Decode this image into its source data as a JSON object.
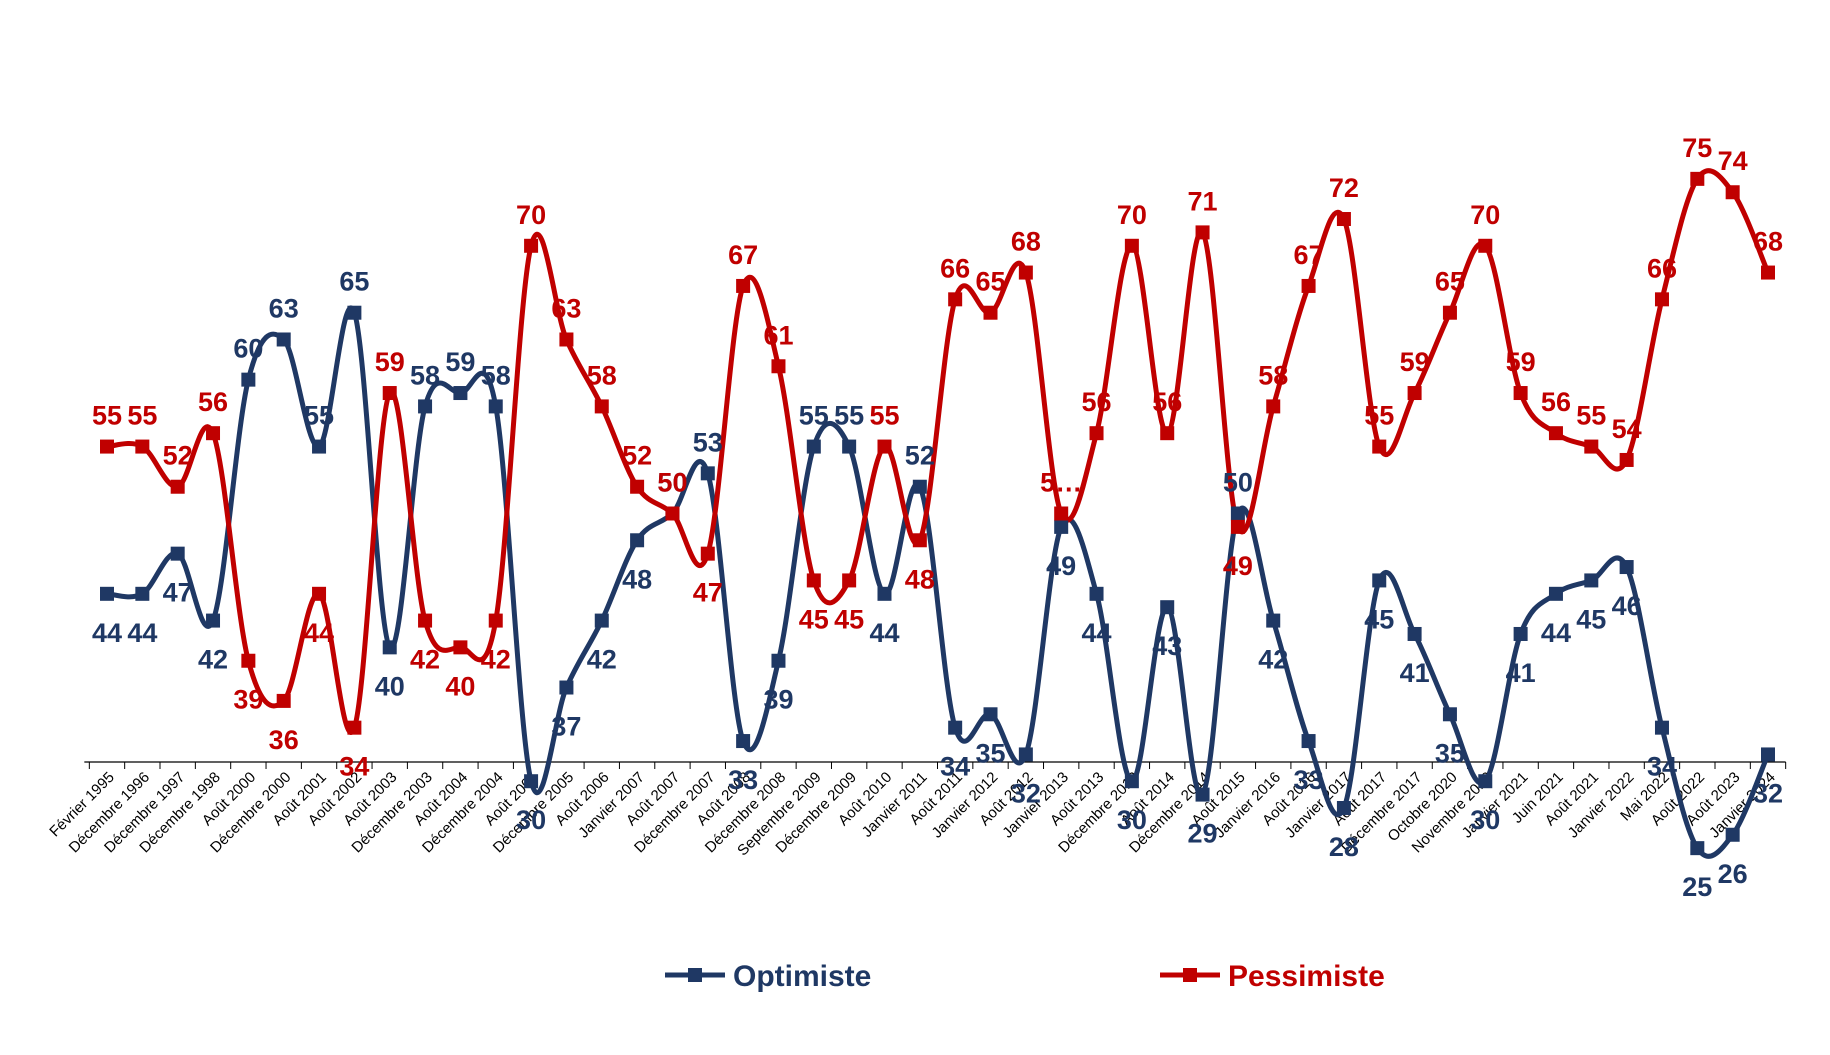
{
  "chart_data": {
    "type": "line",
    "title": "",
    "xlabel": "",
    "ylabel": "",
    "ylim": [
      15,
      85
    ],
    "grid": false,
    "legend_position": "bottom",
    "categories": [
      "Février 1995",
      "Décembre 1996",
      "Décembre 1997",
      "Décembre 1998",
      "Août 2000",
      "Décembre 2000",
      "Août 2001",
      "Août 2002",
      "Août 2003",
      "Décembre 2003",
      "Août 2004",
      "Décembre 2004",
      "Août 2005",
      "Décembre 2005",
      "Août 2006",
      "Janvier 2007",
      "Août 2007",
      "Décembre 2007",
      "Août 2008",
      "Décembre 2008",
      "Septembre 2009",
      "Décembre 2009",
      "Août 2010",
      "Janvier 2011",
      "Août 2011",
      "Janvier 2012",
      "Août 2012",
      "Janvier 2013",
      "Août 2013",
      "Décembre 2013",
      "Août 2014",
      "Décembre 2014",
      "Août 2015",
      "Janvier 2016",
      "Août 2016",
      "Janvier 2017",
      "Août 2017",
      "Décembre 2017",
      "Octobre 2020",
      "Novembre 2020",
      "Janvier 2021",
      "Juin 2021",
      "Août 2021",
      "Janvier 2022",
      "Mai 2022",
      "Août 2022",
      "Août 2023",
      "Janvier 2024"
    ],
    "series": [
      {
        "name": "Optimiste",
        "color": "#1f3864",
        "values": [
          44,
          44,
          47,
          42,
          60,
          63,
          55,
          65,
          40,
          58,
          59,
          58,
          30,
          37,
          42,
          48,
          50,
          53,
          33,
          39,
          55,
          55,
          44,
          52,
          34,
          35,
          32,
          49,
          44,
          30,
          43,
          29,
          50,
          42,
          33,
          28,
          45,
          41,
          35,
          30,
          41,
          44,
          45,
          46,
          34,
          25,
          26,
          32
        ],
        "labels": [
          "44",
          "44",
          "47",
          "42",
          "60",
          "63",
          "55",
          "65",
          "40",
          "58",
          "59",
          "58",
          "30",
          "37",
          "42",
          "48",
          "50",
          "53",
          "33",
          "39",
          "55",
          "55",
          "44",
          "52",
          "34",
          "35",
          "32",
          "49",
          "44",
          "30",
          "43",
          "29",
          "50",
          "42",
          "33",
          "28",
          "45",
          "41",
          "35",
          "30",
          "41",
          "44",
          "45",
          "46",
          "34",
          "25",
          "26",
          "32"
        ]
      },
      {
        "name": "Pessimiste",
        "color": "#c00000",
        "values": [
          55,
          55,
          52,
          56,
          39,
          36,
          44,
          34,
          59,
          42,
          40,
          42,
          70,
          63,
          58,
          52,
          50,
          47,
          67,
          61,
          45,
          45,
          55,
          48,
          66,
          65,
          68,
          50,
          56,
          70,
          56,
          71,
          49,
          58,
          67,
          72,
          55,
          59,
          65,
          70,
          59,
          56,
          55,
          54,
          66,
          75,
          74,
          68
        ],
        "labels": [
          "55",
          "55",
          "52",
          "56",
          "39",
          "36",
          "44",
          "34",
          "59",
          "42",
          "40",
          "42",
          "70",
          "63",
          "58",
          "52",
          "50",
          "47",
          "67",
          "61",
          "45",
          "45",
          "55",
          "48",
          "66",
          "65",
          "68",
          "5…",
          "56",
          "70",
          "56",
          "71",
          "49",
          "58",
          "67",
          "72",
          "55",
          "59",
          "65",
          "70",
          "59",
          "56",
          "55",
          "54",
          "66",
          "75",
          "74",
          "68"
        ]
      }
    ]
  }
}
